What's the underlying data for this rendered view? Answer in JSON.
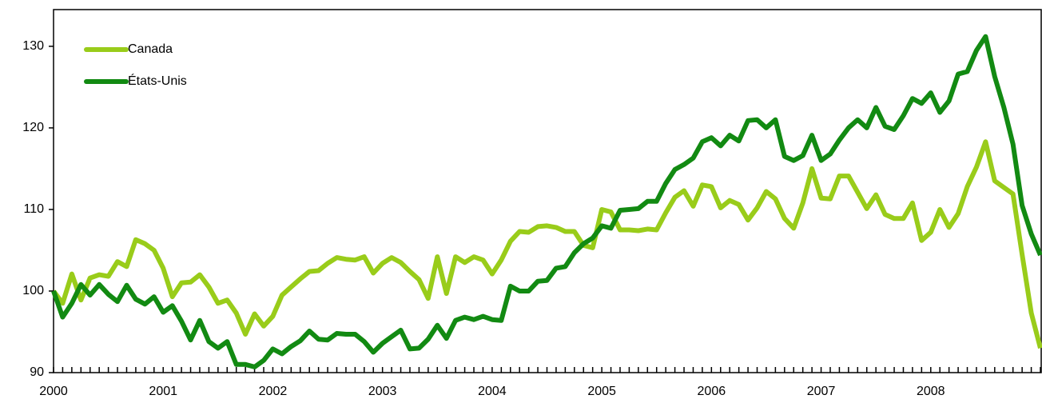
{
  "chart_data": {
    "type": "line",
    "categories": [
      "2000",
      null,
      null,
      null,
      null,
      null,
      null,
      null,
      null,
      null,
      null,
      null,
      "2001",
      null,
      null,
      null,
      null,
      null,
      null,
      null,
      null,
      null,
      null,
      null,
      "2002",
      null,
      null,
      null,
      null,
      null,
      null,
      null,
      null,
      null,
      null,
      null,
      "2003",
      null,
      null,
      null,
      null,
      null,
      null,
      null,
      null,
      null,
      null,
      null,
      "2004",
      null,
      null,
      null,
      null,
      null,
      null,
      null,
      null,
      null,
      null,
      null,
      "2005",
      null,
      null,
      null,
      null,
      null,
      null,
      null,
      null,
      null,
      null,
      null,
      "2006",
      null,
      null,
      null,
      null,
      null,
      null,
      null,
      null,
      null,
      null,
      null,
      "2007",
      null,
      null,
      null,
      null,
      null,
      null,
      null,
      null,
      null,
      null,
      null,
      "2008",
      null,
      null,
      null,
      null,
      null,
      null,
      null,
      null,
      null,
      null,
      null,
      null
    ],
    "series": [
      {
        "name": "Canada",
        "color": "#99cc1a",
        "values": [
          100,
          98.5,
          102.1,
          98.9,
          101.6,
          102,
          101.8,
          103.6,
          103,
          106.3,
          105.8,
          105,
          102.8,
          99.3,
          101,
          101.1,
          102,
          100.5,
          98.5,
          98.9,
          97.3,
          94.7,
          97.2,
          95.7,
          96.9,
          99.5,
          100.5,
          101.5,
          102.4,
          102.5,
          103.4,
          104.1,
          103.9,
          103.8,
          104.2,
          102.2,
          103.4,
          104.1,
          103.5,
          102.4,
          101.4,
          99.1,
          104.2,
          99.7,
          104.2,
          103.5,
          104.2,
          103.8,
          102.1,
          103.8,
          106.1,
          107.3,
          107.2,
          107.9,
          108,
          107.8,
          107.3,
          107.3,
          105.6,
          105.3,
          110,
          109.7,
          107.5,
          107.5,
          107.4,
          107.6,
          107.5,
          109.6,
          111.5,
          112.3,
          110.4,
          113,
          112.8,
          110.2,
          111.1,
          110.6,
          108.7,
          110.2,
          112.2,
          111.3,
          108.9,
          107.7,
          110.8,
          115,
          111.4,
          111.3,
          114.1,
          114.1,
          112.1,
          110.1,
          111.8,
          109.4,
          108.9,
          108.9,
          110.8,
          106.2,
          107.2,
          110,
          107.8,
          109.5,
          112.8,
          115.2,
          118.3,
          113.5,
          112.7,
          111.9,
          104.5,
          97.3,
          93
        ]
      },
      {
        "name": "États-Unis",
        "color": "#128a12",
        "values": [
          100,
          96.8,
          98.5,
          100.8,
          99.5,
          100.8,
          99.6,
          98.7,
          100.7,
          99,
          98.4,
          99.3,
          97.4,
          98.2,
          96.3,
          94,
          96.4,
          93.8,
          93,
          93.8,
          91,
          91,
          90.7,
          91.5,
          92.9,
          92.3,
          93.2,
          93.9,
          95.1,
          94.1,
          94,
          94.8,
          94.7,
          94.7,
          93.8,
          92.5,
          93.6,
          94.4,
          95.2,
          92.9,
          93,
          94.1,
          95.8,
          94.2,
          96.4,
          96.8,
          96.5,
          96.9,
          96.5,
          96.4,
          100.6,
          100,
          100,
          101.2,
          101.3,
          102.8,
          103,
          104.7,
          105.8,
          106.5,
          108,
          107.7,
          109.9,
          110,
          110.1,
          111,
          111,
          113.2,
          114.9,
          115.5,
          116.3,
          118.3,
          118.8,
          117.8,
          119.1,
          118.4,
          120.9,
          121,
          120,
          121,
          116.5,
          116,
          116.6,
          119.1,
          116,
          116.8,
          118.5,
          120,
          121,
          120,
          122.5,
          120.2,
          119.8,
          121.5,
          123.6,
          123,
          124.3,
          121.9,
          123.3,
          126.6,
          126.9,
          129.5,
          131.2,
          126.3,
          122.5,
          118,
          110.5,
          107,
          104.4
        ]
      }
    ],
    "ylim": [
      90,
      134.5
    ],
    "yticks": [
      90,
      100,
      110,
      120,
      130
    ]
  }
}
